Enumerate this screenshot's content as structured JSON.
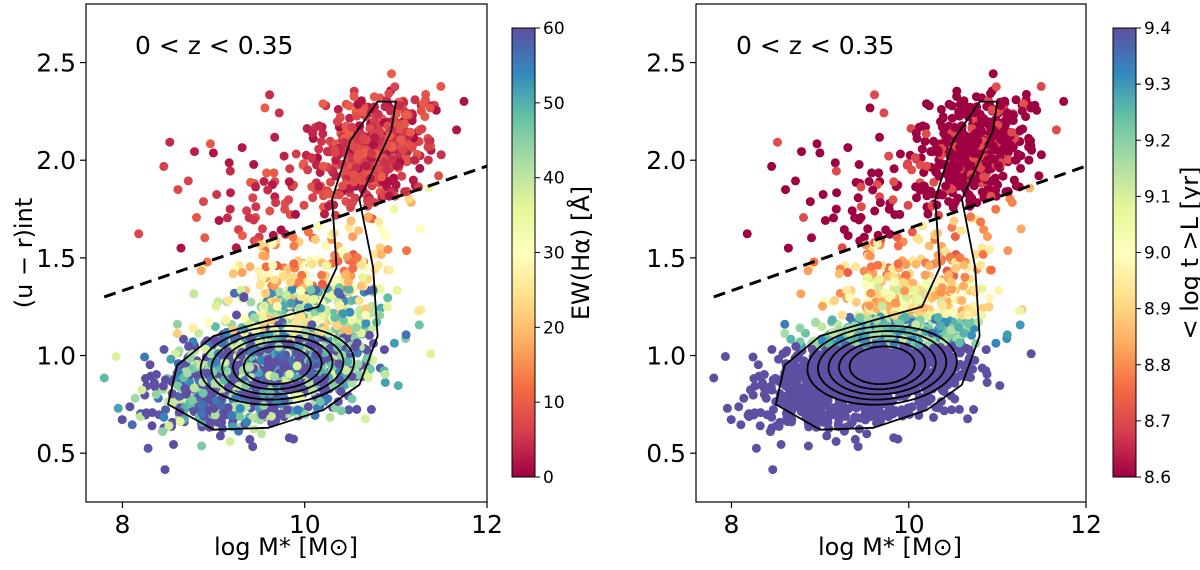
{
  "chart_data": [
    {
      "type": "scatter",
      "annotation": "0 < z < 0.35",
      "xlabel": "log M* [M⊙]",
      "ylabel": "(u − r)int",
      "xlim": [
        7.6,
        12.0
      ],
      "ylim": [
        0.25,
        2.8
      ],
      "x_ticks": [
        "8",
        "10",
        "12"
      ],
      "y_ticks": [
        "0.5",
        "1.0",
        "1.5",
        "2.0",
        "2.5"
      ],
      "dividing_line": {
        "style": "dashed",
        "x": [
          7.8,
          12.0
        ],
        "y": [
          1.3,
          1.97
        ]
      },
      "colorbar": {
        "label": "EW(Hα) [Å]",
        "range": [
          0,
          60
        ],
        "ticks": [
          "0",
          "10",
          "20",
          "30",
          "40",
          "50",
          "60"
        ],
        "colormap": "Spectral"
      },
      "contours": {
        "color": "#000000",
        "levels": 6,
        "peak": [
          9.7,
          0.95
        ]
      }
    },
    {
      "type": "scatter",
      "annotation": "0 < z < 0.35",
      "xlabel": "log M* [M⊙]",
      "ylabel": "",
      "xlim": [
        7.6,
        12.0
      ],
      "ylim": [
        0.25,
        2.8
      ],
      "x_ticks": [
        "8",
        "10",
        "12"
      ],
      "y_ticks": [
        "0.5",
        "1.0",
        "1.5",
        "2.0",
        "2.5"
      ],
      "dividing_line": {
        "style": "dashed",
        "x": [
          7.8,
          12.0
        ],
        "y": [
          1.3,
          1.97
        ]
      },
      "colorbar": {
        "label": "< log t >L [yr]",
        "range": [
          8.6,
          9.4
        ],
        "ticks": [
          "8.6",
          "8.7",
          "8.8",
          "8.9",
          "9.0",
          "9.1",
          "9.2",
          "9.3",
          "9.4"
        ],
        "colormap": "Spectral"
      },
      "contours": {
        "color": "#000000",
        "levels": 6,
        "peak": [
          9.7,
          0.95
        ]
      }
    }
  ],
  "colors": {
    "spectral": [
      "#9e0142",
      "#d53e4f",
      "#f46d43",
      "#fdae61",
      "#fee08b",
      "#ffffbf",
      "#e6f598",
      "#abdda4",
      "#66c2a5",
      "#3288bd",
      "#5e4fa2"
    ]
  }
}
